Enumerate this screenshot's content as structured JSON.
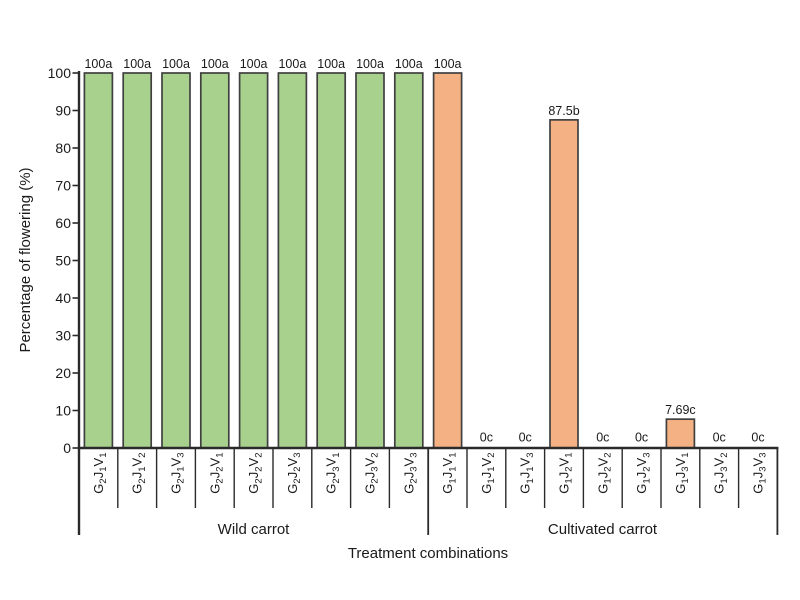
{
  "chart_data": {
    "type": "bar",
    "title": "",
    "xlabel": "Treatment combinations",
    "ylabel": "Percentage of flowering (%)",
    "ylim": [
      0,
      100
    ],
    "ytick_step": 10,
    "grid": false,
    "legend_position": "none",
    "axis_color": "#2a2a2a",
    "text_color": "#1a1a1a",
    "bar_outline_color": "#404040",
    "subscript_digits_in_categories": true,
    "groups": [
      {
        "name": "Wild carrot",
        "color": "#a9d18e",
        "categories": [
          "G2J1V1",
          "G2J1V2",
          "G2J1V3",
          "G2J2V1",
          "G2J2V2",
          "G2J2V3",
          "G2J3V1",
          "G2J3V2",
          "G2J3V3"
        ],
        "values": [
          100,
          100,
          100,
          100,
          100,
          100,
          100,
          100,
          100
        ],
        "bar_labels": [
          "100a",
          "100a",
          "100a",
          "100a",
          "100a",
          "100a",
          "100a",
          "100a",
          "100a"
        ]
      },
      {
        "name": "Cultivated carrot",
        "color": "#f4b183",
        "categories": [
          "G1J1V1",
          "G1J1V2",
          "G1J1V3",
          "G1J2V1",
          "G1J2V2",
          "G1J2V3",
          "G1J3V1",
          "G1J3V2",
          "G1J3V3"
        ],
        "values": [
          100,
          0,
          0,
          87.5,
          0,
          0,
          7.69,
          0,
          0
        ],
        "bar_labels": [
          "100a",
          "0c",
          "0c",
          "87.5b",
          "0c",
          "0c",
          "7.69c",
          "0c",
          "0c"
        ]
      }
    ]
  }
}
